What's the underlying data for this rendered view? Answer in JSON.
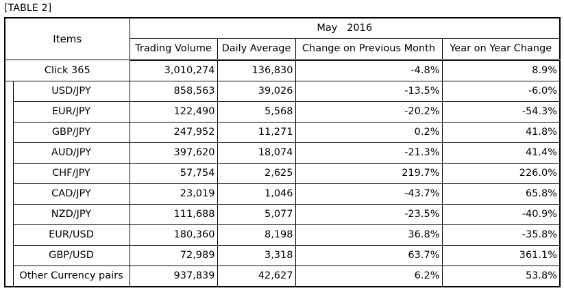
{
  "caption": "[TABLE 2]",
  "header": {
    "items": "Items",
    "period": "May   2016",
    "columns": [
      "Trading Volume",
      "Daily Average",
      "Change on Previous Month",
      "Year on Year Change"
    ]
  },
  "total_row": {
    "label": "Click 365",
    "values": [
      "3,010,274",
      "136,830",
      "-4.8%",
      "8.9%"
    ]
  },
  "rows": [
    {
      "label": "USD/JPY",
      "values": [
        "858,563",
        "39,026",
        "-13.5%",
        "-6.0%"
      ]
    },
    {
      "label": "EUR/JPY",
      "values": [
        "122,490",
        "5,568",
        "-20.2%",
        "-54.3%"
      ]
    },
    {
      "label": "GBP/JPY",
      "values": [
        "247,952",
        "11,271",
        "0.2%",
        "41.8%"
      ]
    },
    {
      "label": "AUD/JPY",
      "values": [
        "397,620",
        "18,074",
        "-21.3%",
        "41.4%"
      ]
    },
    {
      "label": "CHF/JPY",
      "values": [
        "57,754",
        "2,625",
        "219.7%",
        "226.0%"
      ]
    },
    {
      "label": "CAD/JPY",
      "values": [
        "23,019",
        "1,046",
        "-43.7%",
        "65.8%"
      ]
    },
    {
      "label": "NZD/JPY",
      "values": [
        "111,688",
        "5,077",
        "-23.5%",
        "-40.9%"
      ]
    },
    {
      "label": "EUR/USD",
      "values": [
        "180,360",
        "8,198",
        "36.8%",
        "-35.8%"
      ]
    },
    {
      "label": "GBP/USD",
      "values": [
        "72,989",
        "3,318",
        "63.7%",
        "361.1%"
      ]
    },
    {
      "label": "Other Currency pairs",
      "values": [
        "937,839",
        "42,627",
        "6.2%",
        "53.8%"
      ]
    }
  ]
}
